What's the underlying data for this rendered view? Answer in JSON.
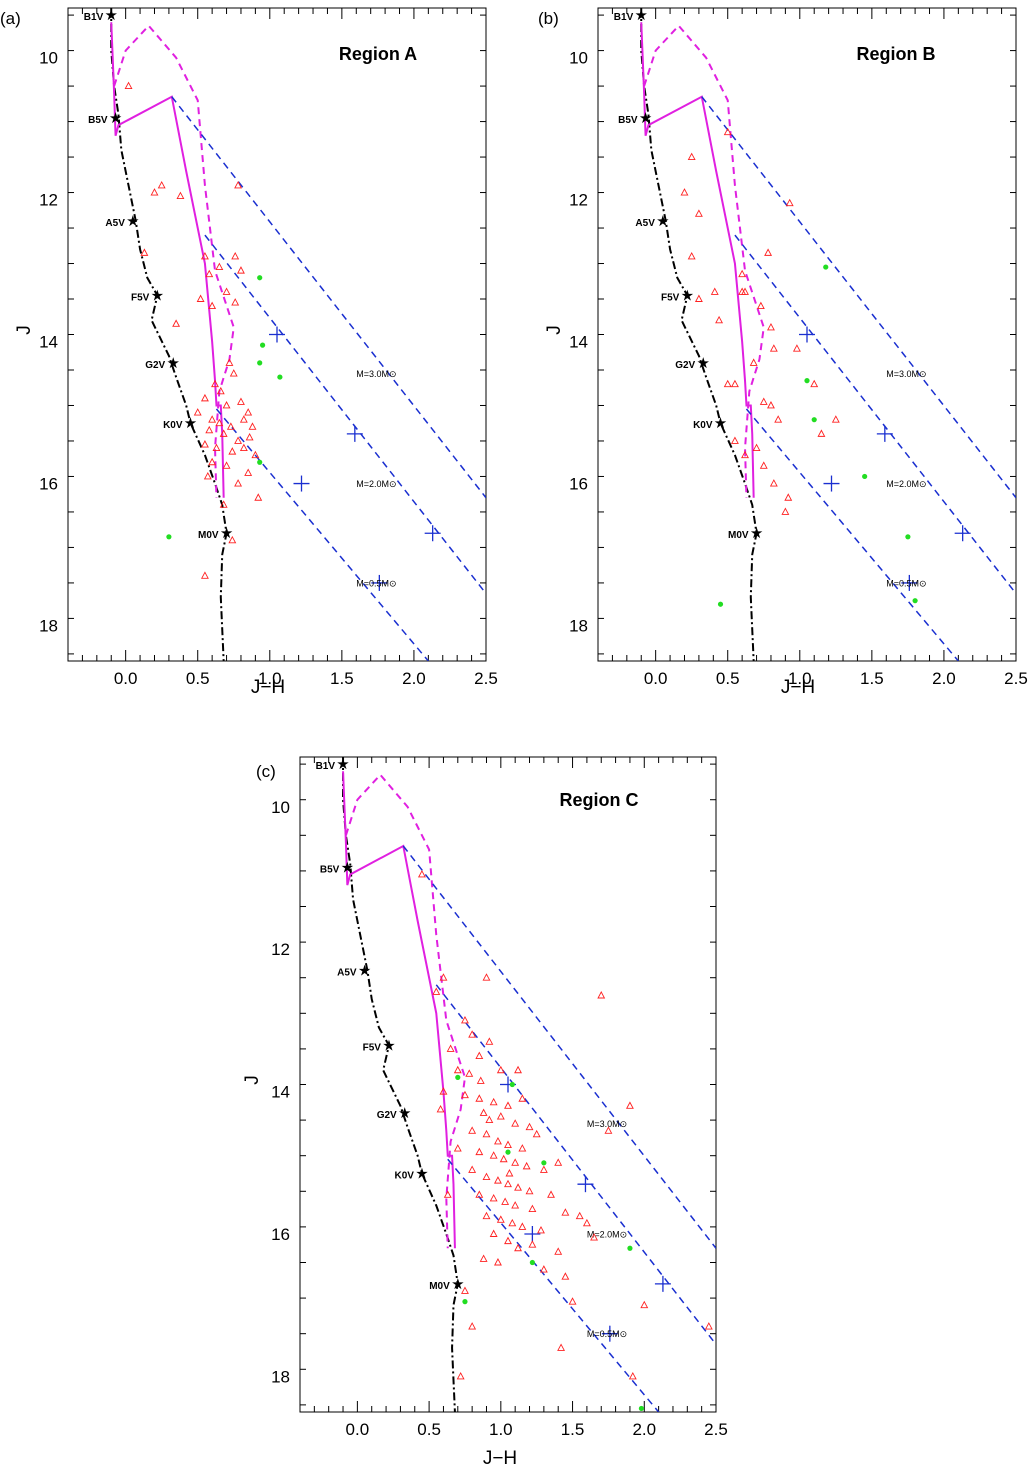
{
  "chart_data": [
    {
      "type": "scatter",
      "panel_label": "(a)",
      "title": "Region A",
      "xlabel": "J−H",
      "ylabel": "J",
      "xlim": [
        -0.4,
        2.5
      ],
      "ylim": [
        18.5,
        9.3
      ],
      "xticks": [
        "0.0",
        "0.5",
        "1.0",
        "1.5",
        "2.0",
        "2.5"
      ],
      "yticks": [
        "10",
        "12",
        "14",
        "16",
        "18"
      ],
      "triangles": [
        [
          0.02,
          10.4
        ],
        [
          0.25,
          11.8
        ],
        [
          0.2,
          11.9
        ],
        [
          0.38,
          11.95
        ],
        [
          0.55,
          12.8
        ],
        [
          0.58,
          13.05
        ],
        [
          0.65,
          12.95
        ],
        [
          0.76,
          12.8
        ],
        [
          0.8,
          13.0
        ],
        [
          0.7,
          13.3
        ],
        [
          0.52,
          13.4
        ],
        [
          0.6,
          13.5
        ],
        [
          0.35,
          13.75
        ],
        [
          0.72,
          14.3
        ],
        [
          0.75,
          14.45
        ],
        [
          0.62,
          14.6
        ],
        [
          0.66,
          14.7
        ],
        [
          0.55,
          14.8
        ],
        [
          0.7,
          14.9
        ],
        [
          0.8,
          14.85
        ],
        [
          0.85,
          15.0
        ],
        [
          0.5,
          15.0
        ],
        [
          0.6,
          15.1
        ],
        [
          0.65,
          15.15
        ],
        [
          0.73,
          15.2
        ],
        [
          0.82,
          15.1
        ],
        [
          0.88,
          15.2
        ],
        [
          0.58,
          15.25
        ],
        [
          0.68,
          15.3
        ],
        [
          0.78,
          15.4
        ],
        [
          0.86,
          15.35
        ],
        [
          0.55,
          15.45
        ],
        [
          0.63,
          15.5
        ],
        [
          0.74,
          15.55
        ],
        [
          0.82,
          15.5
        ],
        [
          0.9,
          15.6
        ],
        [
          0.6,
          15.7
        ],
        [
          0.7,
          15.75
        ],
        [
          0.85,
          15.85
        ],
        [
          0.57,
          15.9
        ],
        [
          0.78,
          16.0
        ],
        [
          0.92,
          16.2
        ],
        [
          0.68,
          16.3
        ],
        [
          0.55,
          17.3
        ],
        [
          0.74,
          16.8
        ],
        [
          0.78,
          11.8
        ],
        [
          0.13,
          12.75
        ],
        [
          0.76,
          13.45
        ]
      ],
      "green": [
        [
          0.93,
          13.1
        ],
        [
          0.95,
          14.05
        ],
        [
          0.93,
          14.3
        ],
        [
          1.07,
          14.5
        ],
        [
          0.93,
          15.7
        ],
        [
          0.3,
          16.75
        ]
      ],
      "sp_labels": [
        {
          "text": "B1V",
          "x": -0.1,
          "y": 9.4
        },
        {
          "text": "B5V",
          "x": -0.07,
          "y": 10.85
        },
        {
          "text": "A5V",
          "x": 0.05,
          "y": 12.3
        },
        {
          "text": "F5V",
          "x": 0.22,
          "y": 13.35
        },
        {
          "text": "G2V",
          "x": 0.33,
          "y": 14.3
        },
        {
          "text": "K0V",
          "x": 0.45,
          "y": 15.15
        },
        {
          "text": "M0V",
          "x": 0.7,
          "y": 16.7
        }
      ],
      "mass_labels": [
        {
          "text": "M=3.0M⊙",
          "x": 1.6,
          "y": 14.5
        },
        {
          "text": "M=2.0M⊙",
          "x": 1.6,
          "y": 16.05
        },
        {
          "text": "M=0.5M⊙",
          "x": 1.6,
          "y": 17.45
        }
      ]
    },
    {
      "type": "scatter",
      "panel_label": "(b)",
      "title": "Region B",
      "xlabel": "J−H",
      "ylabel": "J",
      "xlim": [
        -0.4,
        2.5
      ],
      "ylim": [
        18.5,
        9.3
      ],
      "xticks": [
        "0.0",
        "0.5",
        "1.0",
        "1.5",
        "2.0",
        "2.5"
      ],
      "yticks": [
        "10",
        "12",
        "14",
        "16",
        "18"
      ],
      "triangles": [
        [
          0.5,
          11.05
        ],
        [
          0.25,
          11.4
        ],
        [
          0.2,
          11.9
        ],
        [
          0.3,
          12.2
        ],
        [
          0.25,
          12.8
        ],
        [
          0.3,
          13.4
        ],
        [
          0.41,
          13.3
        ],
        [
          0.44,
          13.7
        ],
        [
          0.78,
          12.75
        ],
        [
          0.6,
          13.05
        ],
        [
          0.62,
          13.3
        ],
        [
          0.73,
          13.5
        ],
        [
          0.8,
          13.8
        ],
        [
          0.82,
          14.1
        ],
        [
          0.68,
          14.3
        ],
        [
          0.5,
          14.6
        ],
        [
          0.55,
          14.6
        ],
        [
          0.75,
          14.85
        ],
        [
          0.8,
          14.9
        ],
        [
          1.1,
          14.6
        ],
        [
          0.85,
          15.1
        ],
        [
          1.15,
          15.3
        ],
        [
          1.25,
          15.1
        ],
        [
          0.55,
          15.4
        ],
        [
          0.62,
          15.6
        ],
        [
          0.7,
          15.5
        ],
        [
          0.75,
          15.75
        ],
        [
          0.82,
          16.0
        ],
        [
          0.92,
          16.2
        ],
        [
          0.9,
          16.4
        ],
        [
          0.93,
          12.05
        ],
        [
          0.6,
          13.3
        ],
        [
          0.98,
          14.1
        ]
      ],
      "green": [
        [
          1.18,
          12.95
        ],
        [
          1.05,
          14.55
        ],
        [
          1.1,
          15.1
        ],
        [
          1.45,
          15.9
        ],
        [
          1.75,
          16.75
        ],
        [
          1.8,
          17.65
        ],
        [
          0.45,
          17.7
        ]
      ],
      "sp_labels": [
        {
          "text": "B1V",
          "x": -0.1,
          "y": 9.4
        },
        {
          "text": "B5V",
          "x": -0.07,
          "y": 10.85
        },
        {
          "text": "A5V",
          "x": 0.05,
          "y": 12.3
        },
        {
          "text": "F5V",
          "x": 0.22,
          "y": 13.35
        },
        {
          "text": "G2V",
          "x": 0.33,
          "y": 14.3
        },
        {
          "text": "K0V",
          "x": 0.45,
          "y": 15.15
        },
        {
          "text": "M0V",
          "x": 0.7,
          "y": 16.7
        }
      ],
      "mass_labels": [
        {
          "text": "M=3.0M⊙",
          "x": 1.6,
          "y": 14.5
        },
        {
          "text": "M=2.0M⊙",
          "x": 1.6,
          "y": 16.05
        },
        {
          "text": "M=0.5M⊙",
          "x": 1.6,
          "y": 17.45
        }
      ]
    },
    {
      "type": "scatter",
      "panel_label": "(c)",
      "title": "Region C",
      "xlabel": "J−H",
      "ylabel": "J",
      "xlim": [
        -0.4,
        2.5
      ],
      "ylim": [
        18.5,
        9.3
      ],
      "xticks": [
        "0.0",
        "0.5",
        "1.0",
        "1.5",
        "2.0",
        "2.5"
      ],
      "yticks": [
        "10",
        "12",
        "14",
        "16",
        "18"
      ],
      "triangles": [
        [
          0.45,
          10.95
        ],
        [
          0.6,
          12.4
        ],
        [
          0.9,
          12.4
        ],
        [
          0.55,
          12.6
        ],
        [
          0.75,
          13.0
        ],
        [
          0.8,
          13.2
        ],
        [
          0.92,
          13.3
        ],
        [
          0.65,
          13.4
        ],
        [
          0.85,
          13.5
        ],
        [
          0.7,
          13.7
        ],
        [
          0.78,
          13.75
        ],
        [
          1.0,
          13.7
        ],
        [
          1.12,
          13.7
        ],
        [
          0.6,
          14.0
        ],
        [
          0.75,
          14.05
        ],
        [
          0.85,
          14.1
        ],
        [
          0.95,
          14.15
        ],
        [
          1.05,
          14.2
        ],
        [
          1.15,
          14.1
        ],
        [
          0.88,
          14.3
        ],
        [
          0.92,
          14.4
        ],
        [
          1.0,
          14.35
        ],
        [
          1.1,
          14.45
        ],
        [
          1.2,
          14.5
        ],
        [
          0.8,
          14.55
        ],
        [
          0.9,
          14.6
        ],
        [
          0.98,
          14.7
        ],
        [
          1.05,
          14.75
        ],
        [
          1.15,
          14.8
        ],
        [
          1.25,
          14.6
        ],
        [
          0.85,
          14.85
        ],
        [
          0.95,
          14.9
        ],
        [
          1.02,
          14.95
        ],
        [
          1.1,
          15.0
        ],
        [
          1.18,
          15.05
        ],
        [
          1.3,
          15.1
        ],
        [
          1.4,
          15.0
        ],
        [
          0.8,
          15.1
        ],
        [
          0.9,
          15.2
        ],
        [
          0.98,
          15.25
        ],
        [
          1.05,
          15.3
        ],
        [
          1.12,
          15.35
        ],
        [
          1.2,
          15.4
        ],
        [
          1.35,
          15.45
        ],
        [
          0.85,
          15.45
        ],
        [
          0.95,
          15.5
        ],
        [
          1.03,
          15.55
        ],
        [
          1.1,
          15.6
        ],
        [
          1.22,
          15.65
        ],
        [
          1.45,
          15.7
        ],
        [
          0.9,
          15.75
        ],
        [
          1.0,
          15.8
        ],
        [
          1.08,
          15.85
        ],
        [
          1.15,
          15.9
        ],
        [
          1.28,
          15.95
        ],
        [
          1.55,
          15.75
        ],
        [
          0.95,
          16.0
        ],
        [
          1.05,
          16.1
        ],
        [
          1.12,
          16.2
        ],
        [
          1.22,
          16.15
        ],
        [
          1.4,
          16.25
        ],
        [
          0.88,
          16.35
        ],
        [
          0.98,
          16.4
        ],
        [
          1.3,
          16.5
        ],
        [
          1.45,
          16.6
        ],
        [
          0.75,
          16.8
        ],
        [
          0.8,
          17.3
        ],
        [
          1.5,
          16.95
        ],
        [
          1.42,
          17.6
        ],
        [
          1.7,
          12.65
        ],
        [
          1.9,
          14.2
        ],
        [
          1.75,
          14.55
        ],
        [
          2.0,
          17.0
        ],
        [
          1.6,
          15.85
        ],
        [
          1.65,
          16.05
        ],
        [
          0.72,
          18.0
        ],
        [
          2.45,
          17.3
        ],
        [
          1.92,
          18.0
        ],
        [
          0.63,
          15.45
        ],
        [
          0.58,
          14.25
        ],
        [
          0.7,
          14.8
        ],
        [
          1.06,
          15.15
        ],
        [
          0.86,
          13.85
        ]
      ],
      "green": [
        [
          0.7,
          13.8
        ],
        [
          1.08,
          13.9
        ],
        [
          1.05,
          14.85
        ],
        [
          1.3,
          15.0
        ],
        [
          1.22,
          16.4
        ],
        [
          1.9,
          16.2
        ],
        [
          0.75,
          16.95
        ],
        [
          1.98,
          18.45
        ]
      ],
      "sp_labels": [
        {
          "text": "B1V",
          "x": -0.1,
          "y": 9.4
        },
        {
          "text": "B5V",
          "x": -0.07,
          "y": 10.85
        },
        {
          "text": "A5V",
          "x": 0.05,
          "y": 12.3
        },
        {
          "text": "F5V",
          "x": 0.22,
          "y": 13.35
        },
        {
          "text": "G2V",
          "x": 0.33,
          "y": 14.3
        },
        {
          "text": "K0V",
          "x": 0.45,
          "y": 15.15
        },
        {
          "text": "M0V",
          "x": 0.7,
          "y": 16.7
        }
      ],
      "mass_labels": [
        {
          "text": "M=3.0M⊙",
          "x": 1.6,
          "y": 14.5
        },
        {
          "text": "M=2.0M⊙",
          "x": 1.6,
          "y": 16.05
        },
        {
          "text": "M=0.5M⊙",
          "x": 1.6,
          "y": 17.45
        }
      ]
    }
  ],
  "model": {
    "main_sequence": [
      [
        -0.1,
        9.3
      ],
      [
        -0.1,
        9.9
      ],
      [
        -0.08,
        10.4
      ],
      [
        -0.05,
        10.8
      ],
      [
        -0.03,
        11.3
      ],
      [
        0.03,
        11.9
      ],
      [
        0.07,
        12.3
      ],
      [
        0.1,
        12.7
      ],
      [
        0.15,
        13.1
      ],
      [
        0.22,
        13.35
      ],
      [
        0.18,
        13.7
      ],
      [
        0.3,
        14.2
      ],
      [
        0.35,
        14.5
      ],
      [
        0.42,
        14.9
      ],
      [
        0.45,
        15.15
      ],
      [
        0.55,
        15.6
      ],
      [
        0.62,
        16.0
      ],
      [
        0.67,
        16.3
      ],
      [
        0.7,
        16.7
      ],
      [
        0.67,
        17.0
      ],
      [
        0.66,
        17.6
      ],
      [
        0.68,
        18.5
      ]
    ],
    "pms_solid": [
      [
        -0.1,
        9.5
      ],
      [
        -0.08,
        10.5
      ],
      [
        -0.07,
        11.1
      ],
      [
        -0.05,
        10.95
      ],
      [
        0.32,
        10.55
      ],
      [
        0.42,
        11.6
      ],
      [
        0.55,
        12.9
      ],
      [
        0.6,
        14.0
      ],
      [
        0.62,
        14.55
      ],
      [
        0.63,
        14.9
      ],
      [
        0.66,
        14.9
      ],
      [
        0.67,
        15.3
      ],
      [
        0.68,
        16.2
      ]
    ],
    "pms_dashed": [
      [
        -0.08,
        10.4
      ],
      [
        0.0,
        9.9
      ],
      [
        0.16,
        9.55
      ],
      [
        0.35,
        10.0
      ],
      [
        0.5,
        10.6
      ],
      [
        0.55,
        11.8
      ],
      [
        0.62,
        13.0
      ],
      [
        0.75,
        13.8
      ],
      [
        0.72,
        14.25
      ],
      [
        0.65,
        14.7
      ],
      [
        0.62,
        15.5
      ],
      [
        0.63,
        16.2
      ]
    ],
    "reddening_lines": [
      {
        "from": [
          0.32,
          10.55
        ],
        "to": [
          2.5,
          16.2
        ]
      },
      {
        "from": [
          0.55,
          12.5
        ],
        "to": [
          2.5,
          17.55
        ]
      },
      {
        "from": [
          0.63,
          14.95
        ],
        "to": [
          2.1,
          18.5
        ]
      }
    ],
    "blue_markers": [
      [
        1.05,
        13.9
      ],
      [
        1.59,
        15.3
      ],
      [
        2.13,
        16.7
      ],
      [
        1.22,
        16.0
      ],
      [
        1.76,
        17.4
      ]
    ]
  },
  "colors": {
    "triangle": "#ff2020",
    "green": "#22dd22",
    "pms": "#e020e0",
    "reddening": "#1a2fd0",
    "main_sequence": "#000000"
  }
}
